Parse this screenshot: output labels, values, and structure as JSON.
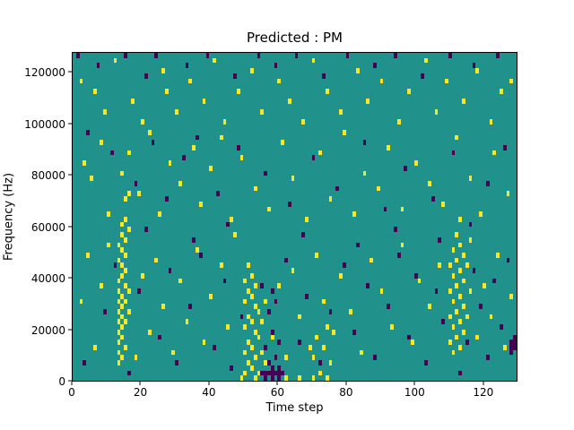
{
  "chart_data": {
    "type": "heatmap",
    "title": "Predicted : PM",
    "xlabel": "Time step",
    "ylabel": "Frequency (Hz)",
    "xlim": [
      0,
      130
    ],
    "ylim": [
      0,
      128000
    ],
    "x_ticks": [
      0,
      20,
      40,
      60,
      80,
      100,
      120
    ],
    "y_ticks": [
      0,
      20000,
      40000,
      60000,
      80000,
      100000,
      120000
    ],
    "grid": false,
    "legend": "none",
    "cell_width_steps": 1,
    "cell_height_hz": 2000,
    "colors": {
      "background": "#21918c",
      "yellow": "#fde725",
      "purple": "#440154"
    },
    "cells": {
      "yellow": [
        [
          13,
          6000
        ],
        [
          13,
          10000
        ],
        [
          13,
          14000
        ],
        [
          13,
          18000
        ],
        [
          13,
          22000
        ],
        [
          13,
          26000
        ],
        [
          13,
          30000
        ],
        [
          13,
          34000
        ],
        [
          13,
          38000
        ],
        [
          13,
          46000
        ],
        [
          13,
          52000
        ],
        [
          14,
          8000
        ],
        [
          14,
          16000
        ],
        [
          14,
          20000
        ],
        [
          14,
          24000
        ],
        [
          14,
          28000
        ],
        [
          14,
          32000
        ],
        [
          14,
          40000
        ],
        [
          14,
          44000
        ],
        [
          14,
          50000
        ],
        [
          14,
          56000
        ],
        [
          14,
          60000
        ],
        [
          15,
          12000
        ],
        [
          15,
          22000
        ],
        [
          15,
          30000
        ],
        [
          15,
          36000
        ],
        [
          15,
          42000
        ],
        [
          15,
          48000
        ],
        [
          15,
          54000
        ],
        [
          15,
          62000
        ],
        [
          15,
          70000
        ],
        [
          16,
          26000
        ],
        [
          16,
          34000
        ],
        [
          16,
          58000
        ],
        [
          16,
          72000
        ],
        [
          50,
          2000
        ],
        [
          50,
          10000
        ],
        [
          50,
          20000
        ],
        [
          50,
          30000
        ],
        [
          50,
          38000
        ],
        [
          51,
          6000
        ],
        [
          51,
          14000
        ],
        [
          51,
          24000
        ],
        [
          51,
          34000
        ],
        [
          51,
          44000
        ],
        [
          52,
          4000
        ],
        [
          52,
          12000
        ],
        [
          52,
          22000
        ],
        [
          52,
          32000
        ],
        [
          52,
          40000
        ],
        [
          53,
          8000
        ],
        [
          53,
          18000
        ],
        [
          53,
          28000
        ],
        [
          53,
          36000
        ],
        [
          54,
          2000
        ],
        [
          54,
          16000
        ],
        [
          54,
          26000
        ],
        [
          55,
          10000
        ],
        [
          55,
          22000
        ],
        [
          56,
          6000
        ],
        [
          56,
          30000
        ],
        [
          110,
          14000
        ],
        [
          110,
          24000
        ],
        [
          110,
          34000
        ],
        [
          110,
          44000
        ],
        [
          111,
          10000
        ],
        [
          111,
          20000
        ],
        [
          111,
          30000
        ],
        [
          111,
          40000
        ],
        [
          111,
          50000
        ],
        [
          112,
          16000
        ],
        [
          112,
          26000
        ],
        [
          112,
          36000
        ],
        [
          112,
          46000
        ],
        [
          112,
          56000
        ],
        [
          113,
          12000
        ],
        [
          113,
          22000
        ],
        [
          113,
          32000
        ],
        [
          113,
          42000
        ],
        [
          113,
          52000
        ],
        [
          113,
          62000
        ],
        [
          114,
          18000
        ],
        [
          114,
          28000
        ],
        [
          114,
          38000
        ],
        [
          114,
          48000
        ],
        [
          115,
          24000
        ],
        [
          115,
          44000
        ],
        [
          116,
          34000
        ],
        [
          116,
          54000
        ],
        [
          2,
          116000
        ],
        [
          6,
          112000
        ],
        [
          9,
          104000
        ],
        [
          12,
          124000
        ],
        [
          17,
          108000
        ],
        [
          20,
          100000
        ],
        [
          26,
          120000
        ],
        [
          27,
          112000
        ],
        [
          30,
          104000
        ],
        [
          34,
          116000
        ],
        [
          38,
          108000
        ],
        [
          41,
          124000
        ],
        [
          44,
          100000
        ],
        [
          48,
          112000
        ],
        [
          52,
          120000
        ],
        [
          55,
          104000
        ],
        [
          60,
          116000
        ],
        [
          63,
          108000
        ],
        [
          67,
          100000
        ],
        [
          70,
          124000
        ],
        [
          74,
          112000
        ],
        [
          78,
          104000
        ],
        [
          83,
          120000
        ],
        [
          86,
          108000
        ],
        [
          90,
          116000
        ],
        [
          95,
          100000
        ],
        [
          98,
          112000
        ],
        [
          103,
          124000
        ],
        [
          106,
          104000
        ],
        [
          109,
          116000
        ],
        [
          114,
          108000
        ],
        [
          118,
          120000
        ],
        [
          122,
          100000
        ],
        [
          125,
          112000
        ],
        [
          128,
          116000
        ],
        [
          3,
          84000
        ],
        [
          5,
          78000
        ],
        [
          8,
          92000
        ],
        [
          10,
          64000
        ],
        [
          14,
          80000
        ],
        [
          16,
          88000
        ],
        [
          19,
          72000
        ],
        [
          22,
          96000
        ],
        [
          25,
          64000
        ],
        [
          28,
          84000
        ],
        [
          31,
          76000
        ],
        [
          35,
          90000
        ],
        [
          37,
          68000
        ],
        [
          40,
          82000
        ],
        [
          43,
          94000
        ],
        [
          46,
          62000
        ],
        [
          49,
          86000
        ],
        [
          53,
          74000
        ],
        [
          57,
          66000
        ],
        [
          61,
          92000
        ],
        [
          64,
          78000
        ],
        [
          68,
          62000
        ],
        [
          72,
          88000
        ],
        [
          75,
          70000
        ],
        [
          79,
          96000
        ],
        [
          82,
          64000
        ],
        [
          85,
          80000
        ],
        [
          89,
          74000
        ],
        [
          92,
          90000
        ],
        [
          96,
          66000
        ],
        [
          100,
          84000
        ],
        [
          104,
          76000
        ],
        [
          108,
          68000
        ],
        [
          112,
          94000
        ],
        [
          116,
          78000
        ],
        [
          119,
          64000
        ],
        [
          123,
          88000
        ],
        [
          127,
          72000
        ],
        [
          2,
          30000
        ],
        [
          4,
          48000
        ],
        [
          6,
          12000
        ],
        [
          8,
          36000
        ],
        [
          10,
          52000
        ],
        [
          18,
          8000
        ],
        [
          20,
          40000
        ],
        [
          22,
          18000
        ],
        [
          24,
          46000
        ],
        [
          26,
          28000
        ],
        [
          29,
          10000
        ],
        [
          31,
          38000
        ],
        [
          33,
          22000
        ],
        [
          36,
          50000
        ],
        [
          38,
          14000
        ],
        [
          40,
          32000
        ],
        [
          43,
          44000
        ],
        [
          45,
          20000
        ],
        [
          47,
          56000
        ],
        [
          58,
          16000
        ],
        [
          60,
          36000
        ],
        [
          62,
          8000
        ],
        [
          64,
          42000
        ],
        [
          66,
          24000
        ],
        [
          69,
          12000
        ],
        [
          71,
          48000
        ],
        [
          73,
          30000
        ],
        [
          76,
          18000
        ],
        [
          78,
          40000
        ],
        [
          81,
          26000
        ],
        [
          84,
          10000
        ],
        [
          87,
          46000
        ],
        [
          90,
          34000
        ],
        [
          93,
          20000
        ],
        [
          96,
          52000
        ],
        [
          99,
          14000
        ],
        [
          101,
          38000
        ],
        [
          104,
          28000
        ],
        [
          107,
          44000
        ],
        [
          118,
          16000
        ],
        [
          120,
          36000
        ],
        [
          122,
          24000
        ],
        [
          124,
          48000
        ],
        [
          126,
          12000
        ],
        [
          128,
          32000
        ],
        [
          49,
          0
        ],
        [
          53,
          0
        ],
        [
          62,
          0
        ],
        [
          66,
          0
        ],
        [
          70,
          0
        ],
        [
          74,
          0
        ],
        [
          70,
          8000
        ],
        [
          71,
          16000
        ],
        [
          72,
          2000
        ],
        [
          73,
          12000
        ],
        [
          74,
          20000
        ],
        [
          75,
          6000
        ]
      ],
      "purple": [
        [
          1,
          126000
        ],
        [
          7,
          122000
        ],
        [
          15,
          126000
        ],
        [
          21,
          118000
        ],
        [
          24,
          126000
        ],
        [
          33,
          122000
        ],
        [
          39,
          126000
        ],
        [
          47,
          118000
        ],
        [
          54,
          126000
        ],
        [
          59,
          122000
        ],
        [
          65,
          126000
        ],
        [
          73,
          118000
        ],
        [
          80,
          126000
        ],
        [
          88,
          122000
        ],
        [
          94,
          126000
        ],
        [
          102,
          118000
        ],
        [
          110,
          126000
        ],
        [
          117,
          122000
        ],
        [
          124,
          126000
        ],
        [
          4,
          96000
        ],
        [
          11,
          88000
        ],
        [
          18,
          76000
        ],
        [
          23,
          92000
        ],
        [
          27,
          70000
        ],
        [
          32,
          86000
        ],
        [
          36,
          94000
        ],
        [
          42,
          72000
        ],
        [
          48,
          90000
        ],
        [
          56,
          80000
        ],
        [
          63,
          68000
        ],
        [
          70,
          86000
        ],
        [
          77,
          74000
        ],
        [
          85,
          92000
        ],
        [
          91,
          66000
        ],
        [
          97,
          82000
        ],
        [
          105,
          70000
        ],
        [
          111,
          88000
        ],
        [
          121,
          76000
        ],
        [
          126,
          90000
        ],
        [
          55,
          2000
        ],
        [
          56,
          2000
        ],
        [
          57,
          2000
        ],
        [
          57,
          6000
        ],
        [
          58,
          2000
        ],
        [
          58,
          4000
        ],
        [
          59,
          2000
        ],
        [
          59,
          8000
        ],
        [
          60,
          2000
        ],
        [
          60,
          4000
        ],
        [
          61,
          2000
        ],
        [
          56,
          12000
        ],
        [
          58,
          18000
        ],
        [
          60,
          14000
        ],
        [
          57,
          26000
        ],
        [
          59,
          30000
        ],
        [
          55,
          36000
        ],
        [
          58,
          34000
        ],
        [
          56,
          0
        ],
        [
          58,
          0
        ],
        [
          60,
          0
        ],
        [
          3,
          6000
        ],
        [
          9,
          26000
        ],
        [
          12,
          44000
        ],
        [
          16,
          2000
        ],
        [
          19,
          34000
        ],
        [
          25,
          16000
        ],
        [
          28,
          42000
        ],
        [
          30,
          6000
        ],
        [
          34,
          28000
        ],
        [
          37,
          48000
        ],
        [
          41,
          12000
        ],
        [
          44,
          38000
        ],
        [
          46,
          4000
        ],
        [
          49,
          24000
        ],
        [
          62,
          46000
        ],
        [
          66,
          14000
        ],
        [
          68,
          32000
        ],
        [
          72,
          6000
        ],
        [
          75,
          26000
        ],
        [
          79,
          44000
        ],
        [
          82,
          18000
        ],
        [
          86,
          36000
        ],
        [
          88,
          8000
        ],
        [
          92,
          28000
        ],
        [
          95,
          48000
        ],
        [
          98,
          16000
        ],
        [
          100,
          40000
        ],
        [
          103,
          6000
        ],
        [
          106,
          34000
        ],
        [
          108,
          22000
        ],
        [
          113,
          2000
        ],
        [
          115,
          14000
        ],
        [
          117,
          42000
        ],
        [
          119,
          28000
        ],
        [
          121,
          8000
        ],
        [
          123,
          38000
        ],
        [
          125,
          20000
        ],
        [
          127,
          46000
        ],
        [
          128,
          10000
        ],
        [
          21,
          58000
        ],
        [
          35,
          54000
        ],
        [
          45,
          60000
        ],
        [
          67,
          56000
        ],
        [
          83,
          52000
        ],
        [
          94,
          58000
        ],
        [
          107,
          54000
        ],
        [
          116,
          60000
        ],
        [
          128,
          12000
        ],
        [
          128,
          14000
        ],
        [
          129,
          12000
        ],
        [
          129,
          14000
        ],
        [
          129,
          16000
        ]
      ]
    }
  }
}
